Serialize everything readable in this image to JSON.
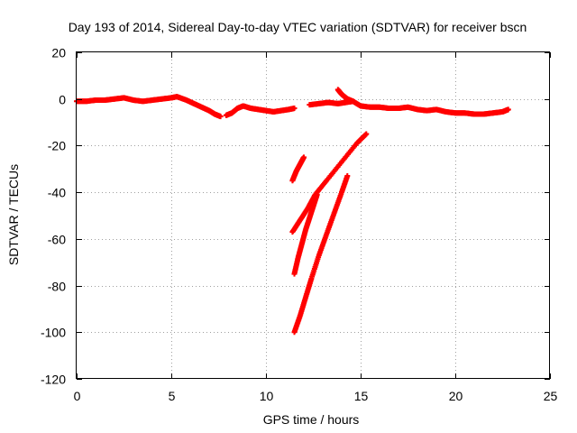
{
  "chart_data": {
    "type": "scatter",
    "title": "Day 193 of 2014, Sidereal Day-to-day VTEC variation (SDTVAR) for receiver bscn",
    "xlabel": "GPS time / hours",
    "ylabel": "SDTVAR / TECUs",
    "xlim": [
      0,
      25
    ],
    "ylim": [
      -120,
      20
    ],
    "xticks": [
      0,
      5,
      10,
      15,
      20,
      25
    ],
    "yticks": [
      20,
      0,
      -20,
      -40,
      -60,
      -80,
      -100,
      -120
    ],
    "grid": true,
    "marker": "plus",
    "series_color": "#ff0000",
    "series": [
      {
        "name": "near-zero baseline (early)",
        "x": [
          0.0,
          0.5,
          1.0,
          1.5,
          2.0,
          2.5,
          3.0,
          3.5,
          4.0,
          4.5,
          5.0,
          5.3,
          5.8,
          6.2,
          6.6,
          7.0,
          7.3,
          7.6
        ],
        "y": [
          -1,
          -1,
          -0.5,
          -0.5,
          0,
          0.5,
          -0.5,
          -1,
          -0.5,
          0,
          0.5,
          1,
          -0.5,
          -2,
          -3.5,
          -5,
          -6.5,
          -7.5
        ]
      },
      {
        "name": "near-zero baseline (mid)",
        "x": [
          7.9,
          8.2,
          8.5,
          8.8,
          9.2,
          9.6,
          10.0,
          10.4,
          10.8,
          11.2,
          11.5
        ],
        "y": [
          -7,
          -6,
          -4,
          -3,
          -4,
          -4.5,
          -5,
          -5.5,
          -5,
          -4.5,
          -4
        ]
      },
      {
        "name": "near-zero baseline (late)",
        "x": [
          12.3,
          12.8,
          13.3,
          13.8,
          14.2,
          14.6,
          15.0,
          15.5,
          16.0,
          16.5,
          17.0,
          17.5,
          18.0,
          18.5,
          19.0,
          19.5,
          20.0,
          20.5,
          21.0,
          21.5,
          22.0,
          22.5,
          22.8
        ],
        "y": [
          -2.5,
          -2,
          -1.5,
          -2,
          -1.5,
          -1,
          -3,
          -3.5,
          -3.5,
          -4,
          -4,
          -3.5,
          -4.5,
          -5,
          -4.5,
          -5.5,
          -6,
          -6,
          -6.5,
          -6.5,
          -6,
          -5.5,
          -4.5
        ]
      },
      {
        "name": "spike",
        "x": [
          13.8,
          14.0,
          14.3,
          14.6
        ],
        "y": [
          4,
          2,
          0,
          -1
        ]
      },
      {
        "name": "descending track A",
        "x": [
          11.4,
          11.6,
          11.8,
          12.0
        ],
        "y": [
          -35,
          -31,
          -28,
          -25
        ]
      },
      {
        "name": "descending track B",
        "x": [
          11.4,
          11.8,
          12.2,
          12.6,
          13.2,
          14.0,
          14.8,
          15.3
        ],
        "y": [
          -57,
          -52,
          -47,
          -41,
          -35,
          -27,
          -19,
          -15
        ]
      },
      {
        "name": "descending track C",
        "x": [
          11.5,
          11.7,
          11.9,
          12.1,
          12.3,
          12.5,
          12.7
        ],
        "y": [
          -75,
          -68,
          -62,
          -56,
          -51,
          -46,
          -41
        ]
      },
      {
        "name": "descending track D",
        "x": [
          11.5,
          11.8,
          12.1,
          12.4,
          12.8,
          13.2,
          13.6,
          14.0,
          14.3
        ],
        "y": [
          -100,
          -93,
          -85,
          -77,
          -67,
          -58,
          -49,
          -40,
          -33
        ]
      }
    ]
  }
}
